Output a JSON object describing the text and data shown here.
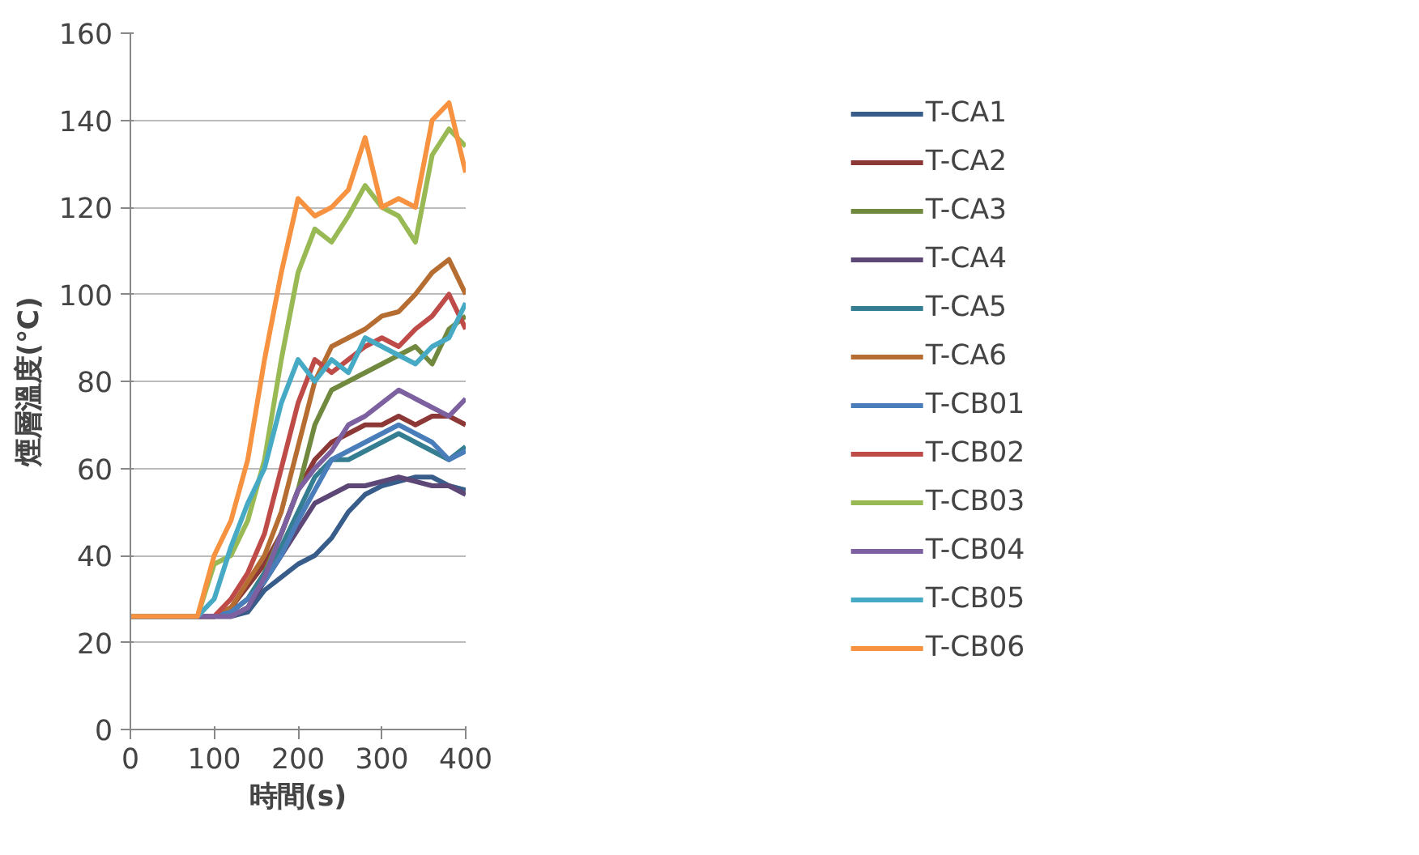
{
  "chart_data": {
    "type": "line",
    "xlabel": "時間(s)",
    "ylabel": "煙層溫度(℃)",
    "x": [
      0,
      80,
      100,
      120,
      140,
      160,
      180,
      200,
      220,
      240,
      260,
      280,
      300,
      320,
      340,
      360,
      380,
      400
    ],
    "xlim": [
      0,
      400
    ],
    "xticks": [
      0,
      100,
      200,
      300,
      400
    ],
    "ylim": [
      0,
      160
    ],
    "yticks": [
      0,
      20,
      40,
      60,
      80,
      100,
      120,
      140,
      160
    ],
    "grid": "y",
    "legend": "right",
    "marker": "none",
    "line_style": "solid",
    "series": [
      {
        "name": "T-CA1",
        "color": "#385d8a",
        "values": [
          26,
          26,
          26,
          26,
          27,
          32,
          35,
          38,
          40,
          44,
          50,
          54,
          56,
          57,
          58,
          58,
          56,
          55
        ]
      },
      {
        "name": "T-CA2",
        "color": "#8c3836",
        "values": [
          26,
          26,
          26,
          28,
          33,
          38,
          45,
          55,
          62,
          66,
          68,
          70,
          70,
          72,
          70,
          72,
          72,
          70
        ]
      },
      {
        "name": "T-CA3",
        "color": "#71893f",
        "values": [
          26,
          26,
          26,
          27,
          30,
          36,
          45,
          55,
          70,
          78,
          80,
          82,
          84,
          86,
          88,
          84,
          92,
          95
        ]
      },
      {
        "name": "T-CA4",
        "color": "#5c4776",
        "values": [
          26,
          26,
          26,
          26,
          28,
          34,
          40,
          46,
          52,
          54,
          56,
          56,
          57,
          58,
          57,
          56,
          56,
          54
        ]
      },
      {
        "name": "T-CA5",
        "color": "#357d91",
        "values": [
          26,
          26,
          26,
          27,
          30,
          36,
          42,
          50,
          58,
          62,
          62,
          64,
          66,
          68,
          66,
          64,
          62,
          65
        ]
      },
      {
        "name": "T-CA6",
        "color": "#b66d31",
        "values": [
          26,
          26,
          26,
          28,
          34,
          40,
          50,
          65,
          80,
          88,
          90,
          92,
          95,
          96,
          100,
          105,
          108,
          100
        ]
      },
      {
        "name": "T-CB01",
        "color": "#4a7ebb",
        "values": [
          26,
          26,
          26,
          27,
          30,
          34,
          40,
          48,
          55,
          62,
          64,
          66,
          68,
          70,
          68,
          66,
          62,
          64
        ]
      },
      {
        "name": "T-CB02",
        "color": "#be4b48",
        "values": [
          26,
          26,
          26,
          30,
          36,
          45,
          60,
          75,
          85,
          82,
          85,
          88,
          90,
          88,
          92,
          95,
          100,
          92
        ]
      },
      {
        "name": "T-CB03",
        "color": "#98b954",
        "values": [
          26,
          26,
          38,
          40,
          48,
          62,
          85,
          105,
          115,
          112,
          118,
          125,
          120,
          118,
          112,
          132,
          138,
          134
        ]
      },
      {
        "name": "T-CB04",
        "color": "#7d60a0",
        "values": [
          26,
          26,
          26,
          26,
          28,
          35,
          45,
          55,
          60,
          64,
          70,
          72,
          75,
          78,
          76,
          74,
          72,
          76
        ]
      },
      {
        "name": "T-CB05",
        "color": "#46aac5",
        "values": [
          26,
          26,
          30,
          42,
          52,
          60,
          75,
          85,
          80,
          85,
          82,
          90,
          88,
          86,
          84,
          88,
          90,
          98
        ]
      },
      {
        "name": "T-CB06",
        "color": "#f69240",
        "values": [
          26,
          26,
          40,
          48,
          62,
          85,
          105,
          122,
          118,
          120,
          124,
          136,
          120,
          122,
          120,
          140,
          144,
          128
        ]
      }
    ]
  }
}
